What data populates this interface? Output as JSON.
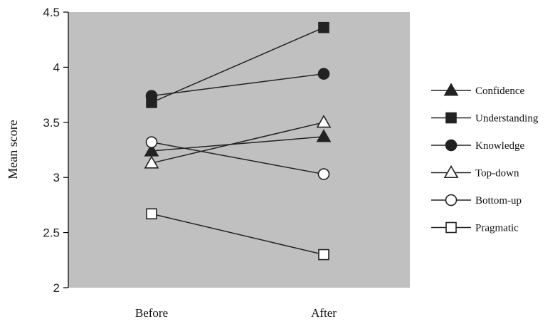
{
  "chart_data": {
    "type": "line",
    "categories": [
      "Before",
      "After"
    ],
    "ylabel": "Mean score",
    "ylim": [
      2,
      4.5
    ],
    "yticks": [
      "2",
      "2.5",
      "3",
      "3.5",
      "4",
      "4.5"
    ],
    "grid": false,
    "legend_position": "right",
    "plot_background": "#c0c0c0",
    "series": [
      {
        "name": "Confidence",
        "marker": "triangle-filled",
        "values": [
          3.24,
          3.37
        ]
      },
      {
        "name": "Understanding",
        "marker": "square-filled",
        "values": [
          3.68,
          4.36
        ]
      },
      {
        "name": "Knowledge",
        "marker": "circle-filled",
        "values": [
          3.74,
          3.94
        ]
      },
      {
        "name": "Top-down",
        "marker": "triangle-open",
        "values": [
          3.13,
          3.5
        ]
      },
      {
        "name": "Bottom-up",
        "marker": "circle-open",
        "values": [
          3.32,
          3.03
        ]
      },
      {
        "name": "Pragmatic",
        "marker": "square-open",
        "values": [
          2.67,
          2.3
        ]
      }
    ]
  }
}
